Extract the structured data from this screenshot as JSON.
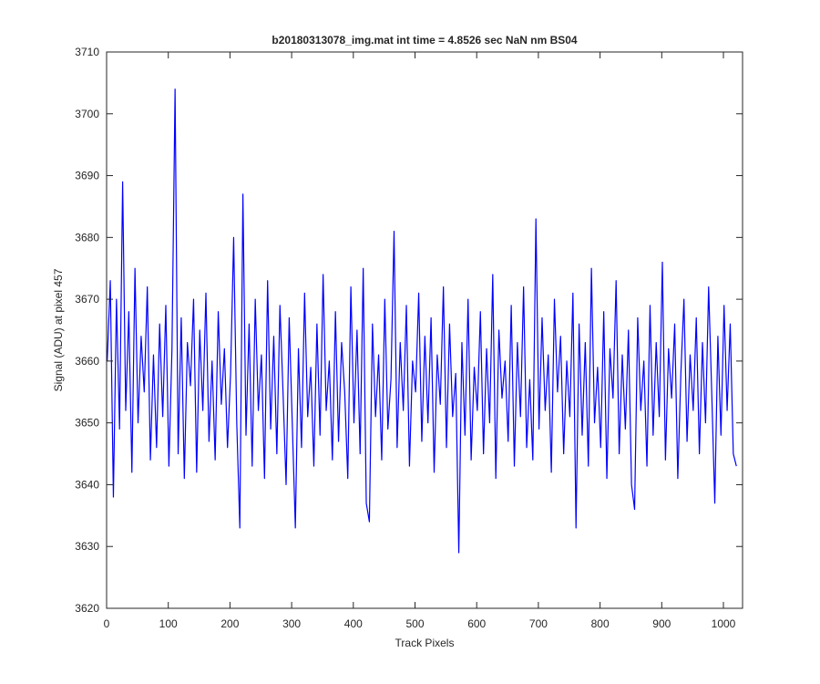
{
  "chart_data": {
    "type": "line",
    "title": "b20180313078_img.mat int time = 4.8526 sec  NaN nm BS04",
    "x_label": "Track Pixels",
    "y_label": "Signal (ADU) at pixel 457",
    "xlim": [
      0,
      1031
    ],
    "ylim": [
      3620,
      3710
    ],
    "xticks": [
      0,
      100,
      200,
      300,
      400,
      500,
      600,
      700,
      800,
      900,
      1000
    ],
    "yticks": [
      3620,
      3630,
      3640,
      3650,
      3660,
      3670,
      3680,
      3690,
      3700,
      3710
    ],
    "grid": false,
    "series": [
      {
        "color": "#0000ff",
        "x": [
          1,
          6,
          11,
          16,
          21,
          26,
          31,
          36,
          41,
          46,
          51,
          56,
          61,
          66,
          71,
          76,
          81,
          86,
          91,
          96,
          101,
          106,
          111,
          116,
          121,
          126,
          131,
          136,
          141,
          146,
          151,
          156,
          161,
          166,
          171,
          176,
          181,
          186,
          191,
          196,
          201,
          206,
          211,
          216,
          221,
          226,
          231,
          236,
          241,
          246,
          251,
          256,
          261,
          266,
          271,
          276,
          281,
          286,
          291,
          296,
          301,
          306,
          311,
          316,
          321,
          326,
          331,
          336,
          341,
          346,
          351,
          356,
          361,
          366,
          371,
          376,
          381,
          386,
          391,
          396,
          401,
          406,
          411,
          416,
          421,
          426,
          431,
          436,
          441,
          446,
          451,
          456,
          461,
          466,
          471,
          476,
          481,
          486,
          491,
          496,
          501,
          506,
          511,
          516,
          521,
          526,
          531,
          536,
          541,
          546,
          551,
          556,
          561,
          566,
          571,
          576,
          581,
          586,
          591,
          596,
          601,
          606,
          611,
          616,
          621,
          626,
          631,
          636,
          641,
          646,
          651,
          656,
          661,
          666,
          671,
          676,
          681,
          686,
          691,
          696,
          701,
          706,
          711,
          716,
          721,
          726,
          731,
          736,
          741,
          746,
          751,
          756,
          761,
          766,
          771,
          776,
          781,
          786,
          791,
          796,
          801,
          806,
          811,
          816,
          821,
          826,
          831,
          836,
          841,
          846,
          851,
          856,
          861,
          866,
          871,
          876,
          881,
          886,
          891,
          896,
          901,
          906,
          911,
          916,
          921,
          926,
          931,
          936,
          941,
          946,
          951,
          956,
          961,
          966,
          971,
          976,
          981,
          986,
          991,
          996,
          1001,
          1006,
          1011,
          1016,
          1021
        ],
        "values": [
          3660,
          3673,
          3638,
          3670,
          3649,
          3689,
          3652,
          3668,
          3642,
          3675,
          3650,
          3664,
          3655,
          3672,
          3644,
          3661,
          3646,
          3666,
          3651,
          3669,
          3643,
          3662,
          3704,
          3645,
          3667,
          3641,
          3663,
          3656,
          3670,
          3642,
          3665,
          3652,
          3671,
          3647,
          3660,
          3644,
          3668,
          3653,
          3662,
          3646,
          3658,
          3680,
          3650,
          3633,
          3687,
          3648,
          3666,
          3643,
          3670,
          3652,
          3661,
          3641,
          3673,
          3649,
          3664,
          3645,
          3669,
          3655,
          3640,
          3667,
          3650,
          3633,
          3662,
          3646,
          3671,
          3651,
          3659,
          3643,
          3666,
          3648,
          3674,
          3652,
          3660,
          3644,
          3668,
          3647,
          3663,
          3655,
          3641,
          3672,
          3650,
          3665,
          3645,
          3675,
          3637,
          3634,
          3666,
          3651,
          3661,
          3644,
          3670,
          3649,
          3657,
          3681,
          3646,
          3663,
          3652,
          3669,
          3643,
          3660,
          3655,
          3671,
          3647,
          3664,
          3650,
          3667,
          3642,
          3661,
          3653,
          3672,
          3646,
          3666,
          3651,
          3658,
          3629,
          3663,
          3648,
          3670,
          3644,
          3659,
          3652,
          3668,
          3645,
          3662,
          3650,
          3674,
          3641,
          3665,
          3654,
          3660,
          3647,
          3669,
          3643,
          3663,
          3651,
          3672,
          3646,
          3657,
          3644,
          3683,
          3649,
          3667,
          3652,
          3661,
          3642,
          3670,
          3655,
          3664,
          3645,
          3660,
          3651,
          3671,
          3633,
          3666,
          3648,
          3663,
          3643,
          3675,
          3650,
          3659,
          3646,
          3668,
          3641,
          3662,
          3654,
          3673,
          3645,
          3661,
          3649,
          3665,
          3640,
          3636,
          3667,
          3652,
          3660,
          3643,
          3669,
          3648,
          3663,
          3651,
          3676,
          3644,
          3662,
          3654,
          3666,
          3641,
          3658,
          3670,
          3647,
          3661,
          3652,
          3667,
          3645,
          3663,
          3650,
          3672,
          3655,
          3637,
          3664,
          3648,
          3669,
          3652,
          3666,
          3645,
          3643
        ]
      }
    ]
  }
}
